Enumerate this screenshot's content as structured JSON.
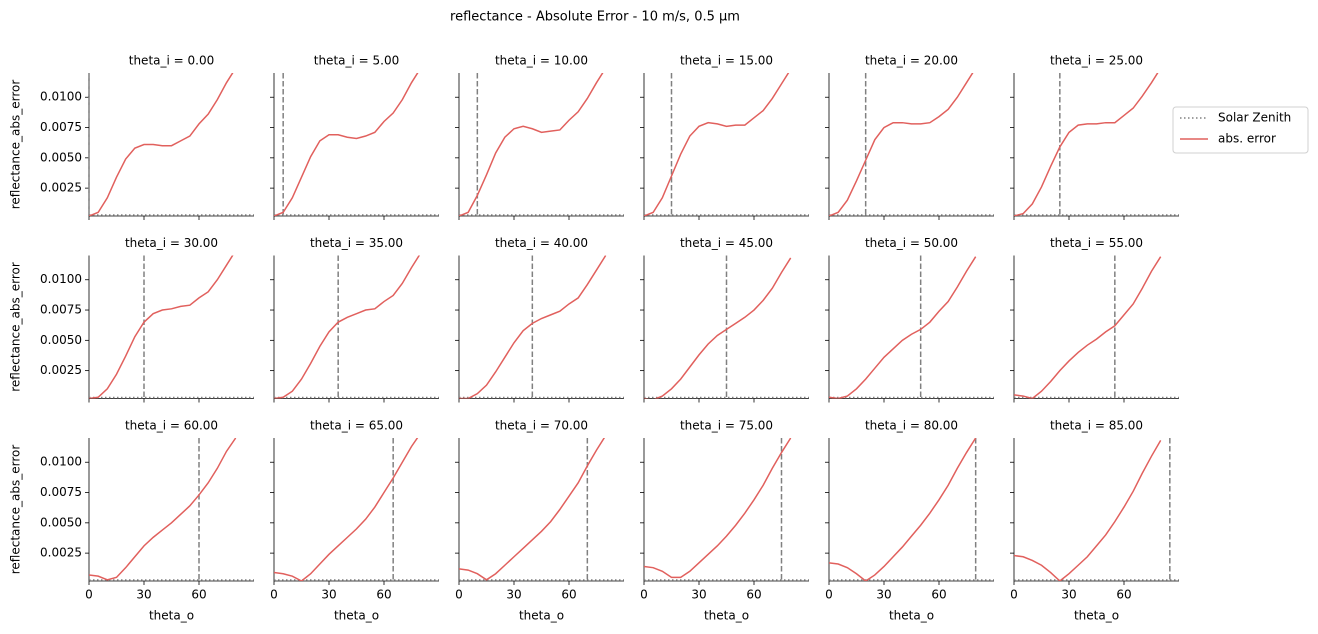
{
  "title": "reflectance - Absolute Error - 10 m/s, 0.5 µm",
  "legend": {
    "position": "right",
    "entries": [
      {
        "name": "Solar Zenith",
        "color": "#808080",
        "style": "dotted"
      },
      {
        "name": "abs. error",
        "color": "#e1605d",
        "style": "solid"
      }
    ]
  },
  "xlabel": "theta_o",
  "ylabel": "reflectance_abs_error",
  "xlim": [
    0,
    90
  ],
  "ylim": [
    0.0002,
    0.012
  ],
  "xticks": [
    0,
    30,
    60
  ],
  "yticks": [
    0.0025,
    {
      "value": 0.005,
      "label": "0.0050"
    },
    0.0075,
    {
      "value": 0.01,
      "label": "0.0100"
    }
  ],
  "x": [
    0,
    5,
    10,
    15,
    20,
    25,
    30,
    35,
    40,
    45,
    50,
    55,
    60,
    65,
    70,
    75,
    80
  ],
  "chart_data": [
    {
      "type": "line",
      "title": "theta_i = 0.00",
      "solar_zenith": 0,
      "series": [
        {
          "color": "#e1605d",
          "values": [
            0.0002,
            0.0005,
            0.0017,
            0.0034,
            0.0049,
            0.0058,
            0.0061,
            0.0061,
            0.006,
            0.006,
            0.0064,
            0.0068,
            0.0078,
            0.0086,
            0.0098,
            0.0112,
            0.0124
          ]
        }
      ]
    },
    {
      "type": "line",
      "title": "theta_i = 5.00",
      "solar_zenith": 5,
      "series": [
        {
          "color": "#e1605d",
          "values": [
            0.0002,
            0.0005,
            0.0017,
            0.0034,
            0.0051,
            0.0064,
            0.0069,
            0.0069,
            0.0067,
            0.0066,
            0.0068,
            0.0071,
            0.008,
            0.0087,
            0.0098,
            0.0112,
            0.0124
          ]
        }
      ]
    },
    {
      "type": "line",
      "title": "theta_i = 10.00",
      "solar_zenith": 10,
      "series": [
        {
          "color": "#e1605d",
          "values": [
            0.0002,
            0.0005,
            0.0019,
            0.0036,
            0.0054,
            0.0067,
            0.0074,
            0.0076,
            0.0074,
            0.0071,
            0.0072,
            0.0073,
            0.0081,
            0.0088,
            0.0099,
            0.0112,
            0.0124
          ]
        }
      ]
    },
    {
      "type": "line",
      "title": "theta_i = 15.00",
      "solar_zenith": 15,
      "series": [
        {
          "color": "#e1605d",
          "values": [
            0.0002,
            0.0005,
            0.0017,
            0.0035,
            0.0053,
            0.0068,
            0.0076,
            0.0079,
            0.0078,
            0.0076,
            0.0077,
            0.0077,
            0.0083,
            0.0089,
            0.0099,
            0.0111,
            0.0123
          ]
        }
      ]
    },
    {
      "type": "line",
      "title": "theta_i = 20.00",
      "solar_zenith": 20,
      "series": [
        {
          "color": "#e1605d",
          "values": [
            0.0002,
            0.0005,
            0.0015,
            0.0031,
            0.0048,
            0.0065,
            0.0075,
            0.0079,
            0.0079,
            0.0078,
            0.0078,
            0.0079,
            0.0084,
            0.009,
            0.01,
            0.0112,
            0.0124
          ]
        }
      ]
    },
    {
      "type": "line",
      "title": "theta_i = 25.00",
      "solar_zenith": 25,
      "series": [
        {
          "color": "#e1605d",
          "values": [
            0.0002,
            0.0004,
            0.0012,
            0.0026,
            0.0043,
            0.0059,
            0.0071,
            0.0077,
            0.0078,
            0.0078,
            0.0079,
            0.0079,
            0.0085,
            0.0091,
            0.0101,
            0.0112,
            0.0124
          ]
        }
      ]
    },
    {
      "type": "line",
      "title": "theta_i = 30.00",
      "solar_zenith": 30,
      "series": [
        {
          "color": "#e1605d",
          "values": [
            0.0002,
            0.0003,
            0.001,
            0.0022,
            0.0037,
            0.0053,
            0.0065,
            0.0072,
            0.0075,
            0.0076,
            0.0078,
            0.0079,
            0.0085,
            0.009,
            0.01,
            0.0112,
            0.0124
          ]
        }
      ]
    },
    {
      "type": "line",
      "title": "theta_i = 35.00",
      "solar_zenith": 35,
      "series": [
        {
          "color": "#e1605d",
          "values": [
            0.0002,
            0.0003,
            0.0008,
            0.0018,
            0.0031,
            0.0045,
            0.0057,
            0.0065,
            0.0069,
            0.0072,
            0.0075,
            0.0076,
            0.0082,
            0.0087,
            0.0097,
            0.011,
            0.0122
          ]
        }
      ]
    },
    {
      "type": "line",
      "title": "theta_i = 40.00",
      "solar_zenith": 40,
      "series": [
        {
          "color": "#e1605d",
          "values": [
            0.0002,
            0.0002,
            0.0006,
            0.0013,
            0.0024,
            0.0036,
            0.0048,
            0.0058,
            0.0064,
            0.0068,
            0.0071,
            0.0074,
            0.008,
            0.0085,
            0.0096,
            0.0108,
            0.012
          ]
        }
      ]
    },
    {
      "type": "line",
      "title": "theta_i = 45.00",
      "solar_zenith": 45,
      "series": [
        {
          "color": "#e1605d",
          "values": [
            0.0002,
            0.0001,
            0.0004,
            0.001,
            0.0018,
            0.0028,
            0.0038,
            0.0047,
            0.0054,
            0.0059,
            0.0064,
            0.0069,
            0.0075,
            0.0083,
            0.0093,
            0.0106,
            0.0118
          ]
        }
      ]
    },
    {
      "type": "line",
      "title": "theta_i = 50.00",
      "solar_zenith": 50,
      "series": [
        {
          "color": "#e1605d",
          "values": [
            0.0003,
            0.0002,
            0.0004,
            0.001,
            0.0018,
            0.0027,
            0.0036,
            0.0043,
            0.005,
            0.0055,
            0.0059,
            0.0065,
            0.0074,
            0.0082,
            0.0094,
            0.0107,
            0.0119
          ]
        }
      ]
    },
    {
      "type": "line",
      "title": "theta_i = 55.00",
      "solar_zenith": 55,
      "series": [
        {
          "color": "#e1605d",
          "values": [
            0.0005,
            0.0004,
            0.0002,
            0.0008,
            0.0016,
            0.0025,
            0.0033,
            0.004,
            0.0046,
            0.0051,
            0.0057,
            0.0062,
            0.0071,
            0.008,
            0.0093,
            0.0107,
            0.0119
          ]
        }
      ]
    },
    {
      "type": "line",
      "title": "theta_i = 60.00",
      "solar_zenith": 60,
      "series": [
        {
          "color": "#e1605d",
          "values": [
            0.0007,
            0.0006,
            0.0003,
            0.0005,
            0.0013,
            0.0022,
            0.0031,
            0.0038,
            0.0044,
            0.005,
            0.0057,
            0.0064,
            0.0073,
            0.0083,
            0.0095,
            0.0109,
            0.012
          ]
        }
      ]
    },
    {
      "type": "line",
      "title": "theta_i = 65.00",
      "solar_zenith": 65,
      "series": [
        {
          "color": "#e1605d",
          "values": [
            0.0009,
            0.0008,
            0.0006,
            0.0002,
            0.0008,
            0.0016,
            0.0024,
            0.0031,
            0.0038,
            0.0045,
            0.0053,
            0.0063,
            0.0075,
            0.0087,
            0.01,
            0.0113,
            0.0124
          ]
        }
      ]
    },
    {
      "type": "line",
      "title": "theta_i = 70.00",
      "solar_zenith": 70,
      "series": [
        {
          "color": "#e1605d",
          "values": [
            0.0012,
            0.0011,
            0.0008,
            0.0003,
            0.0008,
            0.0015,
            0.0022,
            0.0029,
            0.0036,
            0.0043,
            0.0051,
            0.0061,
            0.0072,
            0.0083,
            0.0097,
            0.011,
            0.0122
          ]
        }
      ]
    },
    {
      "type": "line",
      "title": "theta_i = 75.00",
      "solar_zenith": 75,
      "series": [
        {
          "color": "#e1605d",
          "values": [
            0.0014,
            0.0013,
            0.001,
            0.0005,
            0.0005,
            0.001,
            0.0017,
            0.0024,
            0.0031,
            0.0039,
            0.0048,
            0.0058,
            0.0069,
            0.0081,
            0.0095,
            0.0108,
            0.012
          ]
        }
      ]
    },
    {
      "type": "line",
      "title": "theta_i = 80.00",
      "solar_zenith": 80,
      "series": [
        {
          "color": "#e1605d",
          "values": [
            0.0017,
            0.0016,
            0.0013,
            0.0008,
            0.0002,
            0.0007,
            0.0014,
            0.0022,
            0.003,
            0.0039,
            0.0048,
            0.0058,
            0.0069,
            0.0081,
            0.0095,
            0.0108,
            0.012
          ]
        }
      ]
    },
    {
      "type": "line",
      "title": "theta_i = 85.00",
      "solar_zenith": 85,
      "series": [
        {
          "color": "#e1605d",
          "values": [
            0.0023,
            0.0022,
            0.0019,
            0.0015,
            0.0009,
            0.0002,
            0.0008,
            0.0015,
            0.0022,
            0.0031,
            0.004,
            0.0051,
            0.0063,
            0.0076,
            0.0091,
            0.0105,
            0.0118
          ]
        }
      ]
    }
  ]
}
